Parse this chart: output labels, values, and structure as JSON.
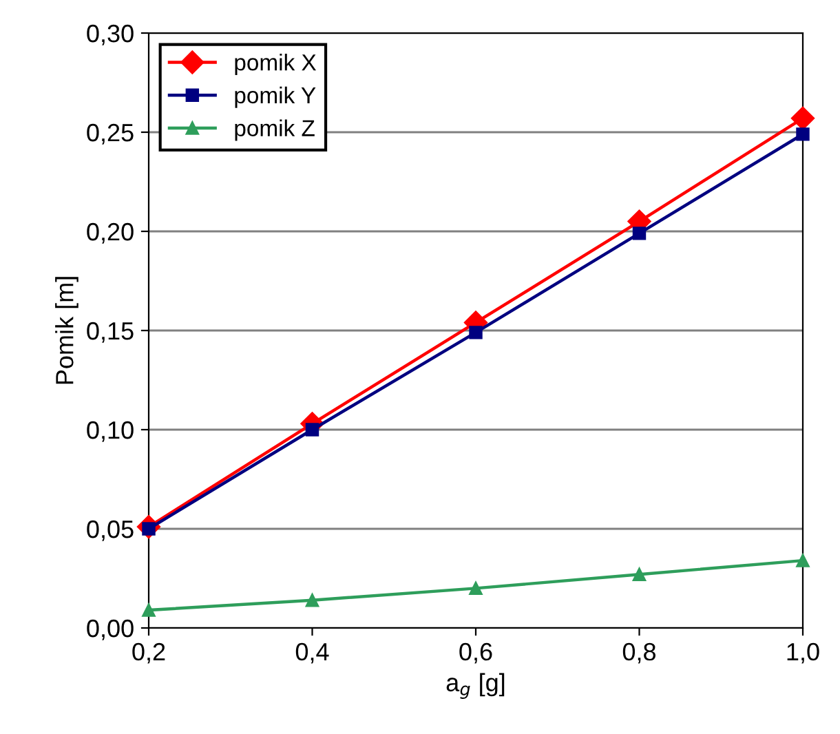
{
  "chart_data": {
    "type": "line",
    "xlabel": "a$_{g}$ [g]",
    "ylabel": "Pomik [m]",
    "x": [
      0.2,
      0.4,
      0.6,
      0.8,
      1.0
    ],
    "series": [
      {
        "name": "pomik X",
        "color": "#ff0000",
        "marker": "diamond",
        "values": [
          0.051,
          0.103,
          0.154,
          0.205,
          0.257
        ]
      },
      {
        "name": "pomik Y",
        "color": "#000080",
        "marker": "square",
        "values": [
          0.05,
          0.1,
          0.149,
          0.199,
          0.249
        ]
      },
      {
        "name": "pomik Z",
        "color": "#2e9e5b",
        "marker": "triangle",
        "values": [
          0.009,
          0.014,
          0.02,
          0.027,
          0.034
        ]
      }
    ],
    "xlim": [
      0.2,
      1.0
    ],
    "xticks": [
      {
        "value": 0.2,
        "label": "0,2"
      },
      {
        "value": 0.4,
        "label": "0,4"
      },
      {
        "value": 0.6,
        "label": "0,6"
      },
      {
        "value": 0.8,
        "label": "0,8"
      },
      {
        "value": 1.0,
        "label": "1,0"
      }
    ],
    "ylim": [
      0,
      0.3
    ],
    "yticks": [
      {
        "value": 0,
        "label": "0,00"
      },
      {
        "value": 0.05,
        "label": "0,05"
      },
      {
        "value": 0.1,
        "label": "0,10"
      },
      {
        "value": 0.15,
        "label": "0,15"
      },
      {
        "value": 0.2,
        "label": "0,20"
      },
      {
        "value": 0.25,
        "label": "0,25"
      },
      {
        "value": 0.3,
        "label": "0,30"
      }
    ],
    "grid": "y",
    "legend": "top left",
    "line_style": "solid"
  }
}
